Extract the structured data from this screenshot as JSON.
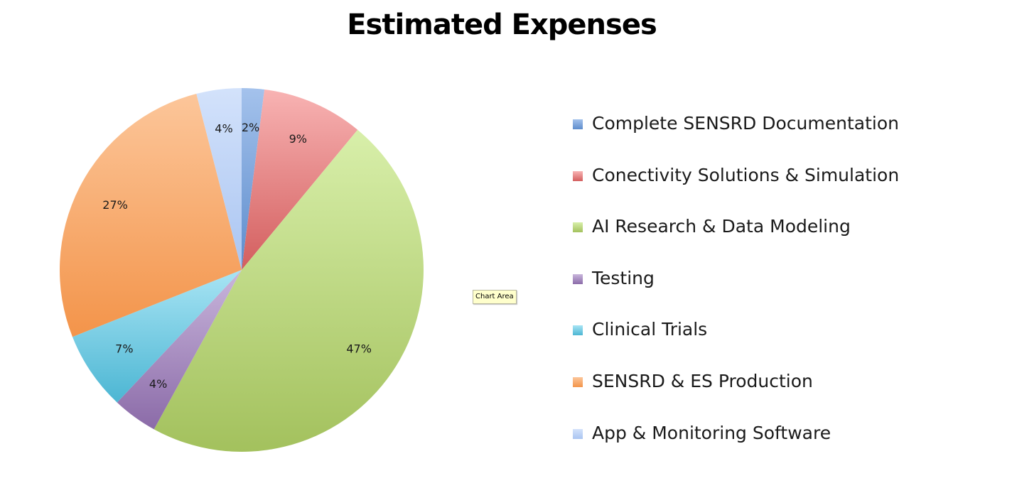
{
  "chart_data": {
    "type": "pie",
    "title": "Estimated Expenses",
    "categories": [
      "Complete SENSRD Documentation",
      "Conectivity Solutions & Simulation",
      "AI Research & Data Modeling",
      "Testing",
      "Clinical Trials",
      "SENSRD & ES Production",
      "App & Monitoring Software"
    ],
    "values": [
      2,
      9,
      47,
      4,
      7,
      27,
      4
    ],
    "data_labels": [
      "2%",
      "9%",
      "47%",
      "4%",
      "7%",
      "27%",
      "4%"
    ],
    "colors": [
      [
        "#a4c2ec",
        "#5d8ccc"
      ],
      [
        "#f8b3b3",
        "#d35e5e"
      ],
      [
        "#d8efaa",
        "#a3c15d"
      ],
      [
        "#c9b6dc",
        "#8b6ba8"
      ],
      [
        "#a8e4f4",
        "#4cb6d3"
      ],
      [
        "#fcc69a",
        "#f3944a"
      ],
      [
        "#d3e2fb",
        "#aac5f1"
      ]
    ],
    "legend_position": "right"
  },
  "tooltip": {
    "text": "Chart Area"
  }
}
